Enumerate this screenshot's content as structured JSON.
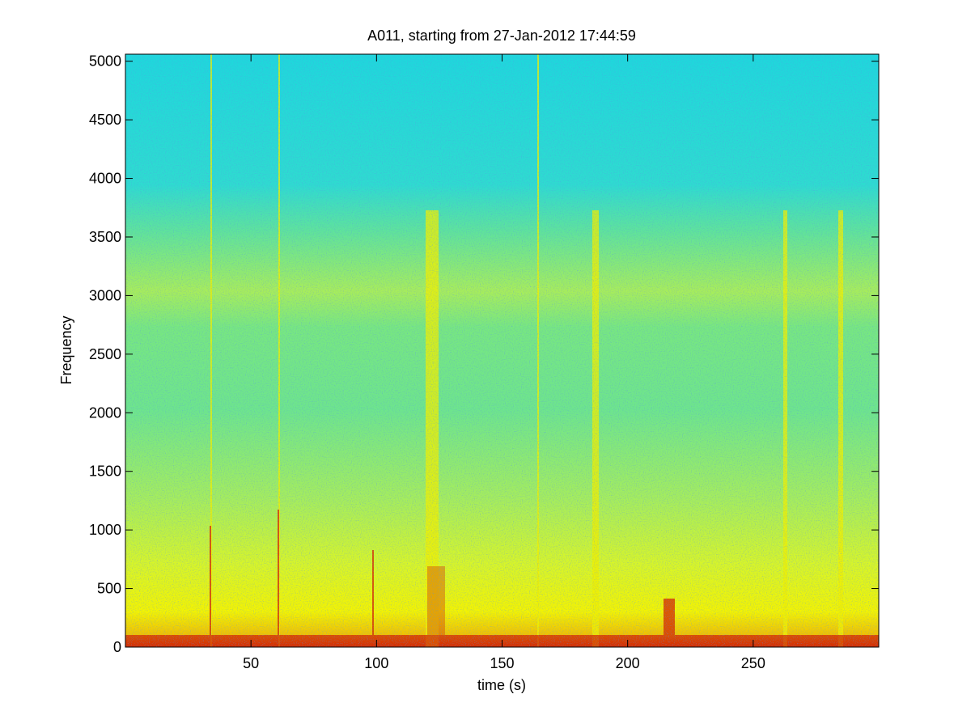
{
  "chart_data": {
    "type": "spectrogram",
    "title": "A011, starting from 27-Jan-2012 17:44:59",
    "xlabel": "time (s)",
    "ylabel": "Frequency",
    "xlim": [
      0,
      300
    ],
    "xticks": [
      50,
      100,
      150,
      200,
      250
    ],
    "ylim": [
      0,
      5060
    ],
    "yticks": [
      0,
      500,
      1000,
      1500,
      2000,
      2500,
      3000,
      3500,
      4000,
      4500,
      5000
    ]
  }
}
